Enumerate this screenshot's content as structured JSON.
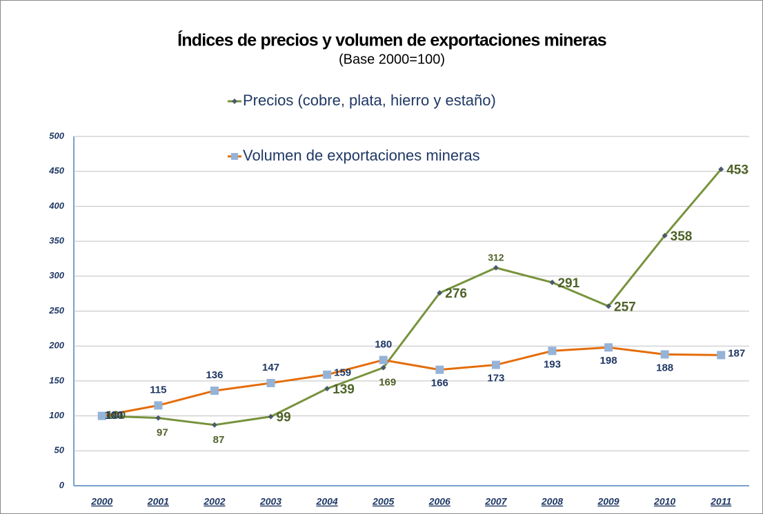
{
  "chart_data": {
    "type": "line",
    "title": "Índices de precios y volumen de exportaciones mineras",
    "subtitle": "(Base 2000=100)",
    "categories": [
      "2000",
      "2001",
      "2002",
      "2003",
      "2004",
      "2005",
      "2006",
      "2007",
      "2008",
      "2009",
      "2010",
      "2011"
    ],
    "series": [
      {
        "name": "Precios (cobre, plata, hierro y estaño)",
        "color": "#77933c",
        "marker_color": "#4a5a6a",
        "values": [
          100,
          97,
          87,
          99,
          139,
          169,
          276,
          312,
          291,
          257,
          358,
          453
        ]
      },
      {
        "name": "Volumen de exportaciones mineras",
        "color": "#e46c0a",
        "marker_color": "#95b3d7",
        "values": [
          100,
          115,
          136,
          147,
          159,
          180,
          166,
          173,
          193,
          198,
          188,
          187
        ]
      }
    ],
    "ylim": [
      0,
      500
    ],
    "yticks": [
      0,
      50,
      100,
      150,
      200,
      250,
      300,
      350,
      400,
      450,
      500
    ],
    "grid": true
  }
}
